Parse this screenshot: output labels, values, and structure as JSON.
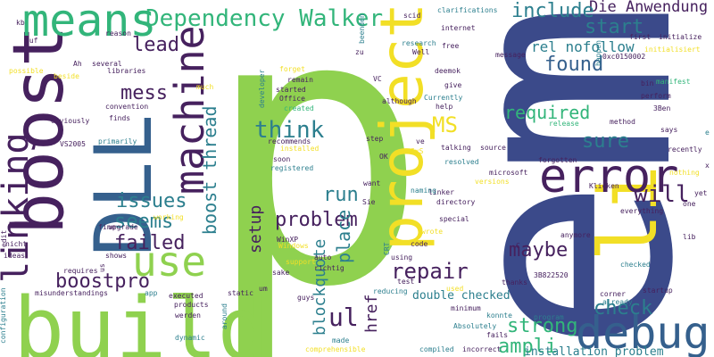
{
  "palette": {
    "background": "#ffffff",
    "navy": "#3b4a8a",
    "purple": "#46215e",
    "teal": "#2c7f8e",
    "blue": "#35608d",
    "green": "#32b57a",
    "lime": "#8fd14f",
    "yellow": "#f2df26"
  },
  "words": [
    "p",
    "em",
    "build",
    "boost",
    "DLL",
    "project",
    "li",
    "error",
    "debug",
    "means",
    "linking",
    "machine",
    "Dependency Walker",
    "use",
    "Die Anwendung",
    "include",
    "start",
    "lead",
    "ul",
    "repair",
    "found",
    "rel nofollow",
    "mess",
    "required",
    "think",
    "sure",
    "will",
    "MS",
    "check",
    "boost thread",
    "problem",
    "run",
    "seems",
    "issues",
    "failed",
    "boostpro",
    "setup",
    "place",
    "blockquote",
    "href",
    "strong",
    "maybe",
    "ampli",
    "installation problem",
    "double checked",
    "already",
    "3Ben",
    "0xc0150002",
    "bin",
    "clarifications",
    "scid",
    "happen",
    "first",
    "initialize",
    "initialisiert",
    "manifest",
    "perform",
    "says",
    "recently",
    "nothing",
    "yet",
    "one",
    "everything",
    "lib",
    "corner",
    "startup",
    "checked",
    "anymore",
    "3B822520",
    "thanks",
    "C",
    "program",
    "konnte",
    "minimum",
    "fails",
    "Absolutely",
    "compiled",
    "incorrect",
    "source",
    "resolved",
    "microsoft",
    "forgotten",
    "SxS",
    "talking",
    "versions",
    "Klicken",
    "release",
    "method",
    "give",
    "Currently",
    "help",
    "although",
    "deemok",
    "message",
    "research",
    "internet",
    "free",
    "Well",
    "zu",
    "beenden",
    "reason",
    "kb",
    "auf",
    "possible",
    "beside",
    "Ah",
    "several",
    "libraries",
    "obviously",
    "finds",
    "convention",
    "primarily",
    "VS2005",
    "fine",
    "working",
    "upgrade",
    "nicht",
    "edit",
    "ideas",
    "requires",
    "us",
    "shows",
    "misunderstandings",
    "app",
    "configuration",
    "products",
    "werden",
    "executed",
    "dynamic",
    "around",
    "static",
    "um",
    "guys",
    "made",
    "comprehensible",
    "WinXP",
    "Windows",
    "sake",
    "support",
    "auto",
    "richtig",
    "test",
    "reducing",
    "using",
    "wrote",
    "code",
    "special",
    "directory",
    "linker",
    "naming",
    "want",
    "Sie",
    "OK",
    "step",
    "installed",
    "registered",
    "soon",
    "recommends",
    "developer",
    "started",
    "Office",
    "created",
    "remain",
    "forget",
    "much",
    "VC",
    "CRT",
    "used",
    "ve",
    "x",
    "e"
  ]
}
